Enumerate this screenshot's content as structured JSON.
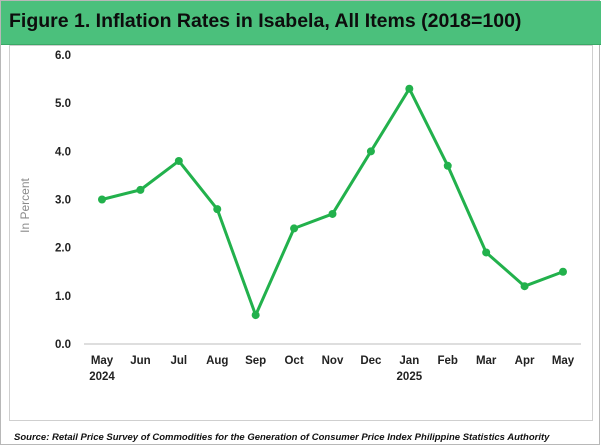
{
  "title": "Figure 1.  Inflation Rates in Isabela, All Items (2018=100)",
  "source": "Source:  Retail Price Survey of Commodities for the Generation of Consumer Price Index Philippine Statistics Authority",
  "colors": {
    "title_bar": "#4bc07c",
    "series": "#22b14c",
    "axis": "#bdbdbd"
  },
  "chart_data": {
    "type": "line",
    "title": "Figure 1.  Inflation Rates in Isabela, All Items (2018=100)",
    "xlabel": "",
    "ylabel": "In Percent",
    "categories": [
      "May",
      "Jun",
      "Jul",
      "Aug",
      "Sep",
      "Oct",
      "Nov",
      "Dec",
      "Jan",
      "Feb",
      "Mar",
      "Apr",
      "May"
    ],
    "category_years": [
      "2024",
      "",
      "",
      "",
      "",
      "",
      "",
      "",
      "2025",
      "",
      "",
      "",
      ""
    ],
    "series": [
      {
        "values": [
          3.0,
          3.2,
          3.8,
          2.8,
          0.6,
          2.4,
          2.7,
          4.0,
          5.3,
          3.7,
          1.9,
          1.2,
          1.5
        ]
      }
    ],
    "ylim": [
      0.0,
      6.0
    ],
    "yticks": [
      "0.0",
      "1.0",
      "2.0",
      "3.0",
      "4.0",
      "5.0",
      "6.0"
    ],
    "grid": false,
    "legend": "none"
  }
}
